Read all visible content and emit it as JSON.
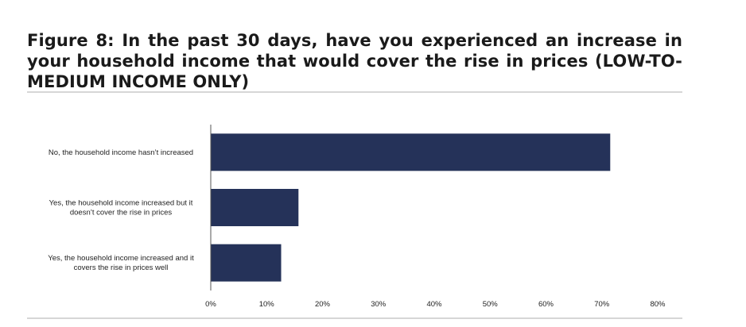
{
  "figure": {
    "title": "Figure 8: In the past 30 days, have you experienced an increase in your household income that would cover the rise in prices (LOW-TO-MEDIUM INCOME ONLY)"
  },
  "chart_data": {
    "type": "bar",
    "orientation": "horizontal",
    "categories": [
      [
        "No, the household income hasn’t increased"
      ],
      [
        "Yes, the household income increased but it",
        "doesn’t cover the rise in prices"
      ],
      [
        "Yes, the household income increased and it",
        "covers the rise in prices well"
      ]
    ],
    "values": [
      71.5,
      15.7,
      12.6
    ],
    "unit": "%",
    "xlim": [
      0,
      80
    ],
    "ticks": [
      0,
      10,
      20,
      30,
      40,
      50,
      60,
      70,
      80
    ],
    "tick_labels": [
      "0%",
      "10%",
      "20%",
      "30%",
      "40%",
      "50%",
      "60%",
      "70%",
      "80%"
    ],
    "bar_color": "#253259",
    "grid": false,
    "legend": "none"
  }
}
